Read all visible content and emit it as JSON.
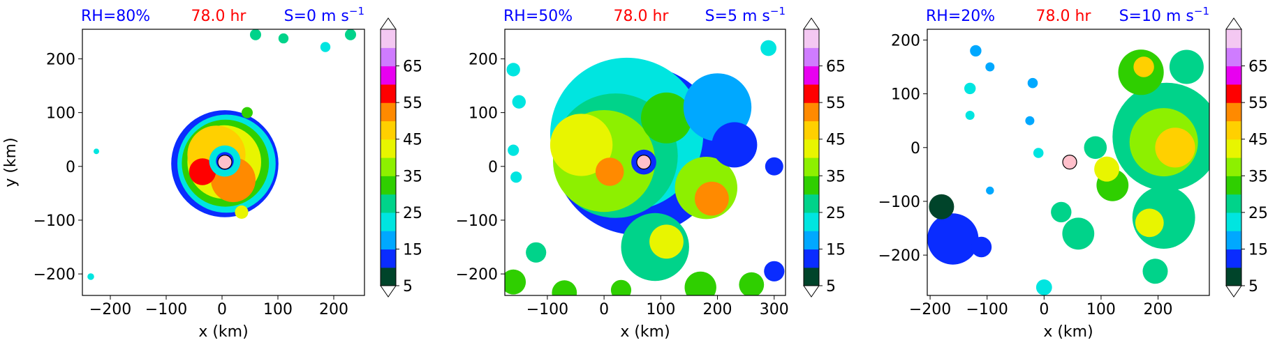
{
  "figure": {
    "colorbar_ticks": [
      "5",
      "15",
      "25",
      "35",
      "45",
      "55",
      "65"
    ],
    "colorbar_colors": [
      "#00442a",
      "#0a2cff",
      "#00a8ff",
      "#00e5e0",
      "#00d38a",
      "#2fcf00",
      "#8df000",
      "#e8f500",
      "#ffd000",
      "#ff8a00",
      "#ff0000",
      "#e800f0",
      "#cf7cff",
      "#f4c8f2"
    ],
    "title_colors": {
      "left": "#0000ff",
      "center": "#ff0000",
      "right": "#0000ff"
    },
    "center_marker_color": "#ffc0cb",
    "shared_time": "78.0 hr"
  },
  "chart_data": [
    {
      "type": "heatmap",
      "title_left": "RH=80%",
      "title_center": "78.0 hr",
      "title_right": "S=0 m s",
      "title_right_sup": "−1",
      "xlabel": "x (km)",
      "ylabel": "y (km)",
      "xlim": [
        -250,
        255
      ],
      "ylim": [
        -240,
        255
      ],
      "xticks": [
        -200,
        -100,
        0,
        100,
        200
      ],
      "xtick_labels": [
        "−200",
        "−100",
        "0",
        "100",
        "200"
      ],
      "yticks": [
        -200,
        -100,
        0,
        100,
        200
      ],
      "ytick_labels": [
        "−200",
        "−100",
        "0",
        "100",
        "200"
      ],
      "center_marker": [
        5,
        8
      ],
      "colorbar_range": [
        5,
        70
      ],
      "blobs": [
        {
          "x": 5,
          "y": 5,
          "r": 96,
          "v": 12
        },
        {
          "x": 8,
          "y": 5,
          "r": 88,
          "v": 20
        },
        {
          "x": 6,
          "y": 6,
          "r": 78,
          "v": 30
        },
        {
          "x": 4,
          "y": 8,
          "r": 66,
          "v": 40
        },
        {
          "x": -10,
          "y": 22,
          "r": 52,
          "v": 44
        },
        {
          "x": 20,
          "y": -25,
          "r": 40,
          "v": 50
        },
        {
          "x": -35,
          "y": -10,
          "r": 24,
          "v": 52
        },
        {
          "x": 5,
          "y": 10,
          "r": 28,
          "v": 22
        },
        {
          "x": 5,
          "y": 10,
          "r": 16,
          "v": 12
        },
        {
          "x": 35,
          "y": -85,
          "r": 12,
          "v": 38
        },
        {
          "x": 45,
          "y": 100,
          "r": 10,
          "v": 30
        },
        {
          "x": 60,
          "y": 245,
          "r": 10,
          "v": 25
        },
        {
          "x": 110,
          "y": 238,
          "r": 9,
          "v": 25
        },
        {
          "x": 185,
          "y": 222,
          "r": 9,
          "v": 22
        },
        {
          "x": 230,
          "y": 245,
          "r": 10,
          "v": 25
        },
        {
          "x": -225,
          "y": 28,
          "r": 5,
          "v": 20
        },
        {
          "x": -235,
          "y": -205,
          "r": 6,
          "v": 20
        }
      ]
    },
    {
      "type": "heatmap",
      "title_left": "RH=50%",
      "title_center": "78.0 hr",
      "title_right": "S=5 m s",
      "title_right_sup": "−1",
      "xlabel": "x (km)",
      "ylabel": "",
      "xlim": [
        -175,
        320
      ],
      "ylim": [
        -240,
        255
      ],
      "xticks": [
        -100,
        0,
        100,
        200,
        300
      ],
      "xtick_labels": [
        "−100",
        "0",
        "100",
        "200",
        "300"
      ],
      "yticks": [
        -200,
        -100,
        0,
        100,
        200
      ],
      "ytick_labels": [
        "−200",
        "−100",
        "0",
        "100",
        "200"
      ],
      "center_marker": [
        70,
        8
      ],
      "colorbar_range": [
        5,
        70
      ],
      "blobs": [
        {
          "x": 60,
          "y": 30,
          "r": 150,
          "v": 12
        },
        {
          "x": 40,
          "y": 60,
          "r": 135,
          "v": 22
        },
        {
          "x": 20,
          "y": 20,
          "r": 110,
          "v": 28
        },
        {
          "x": 0,
          "y": 10,
          "r": 90,
          "v": 36
        },
        {
          "x": -40,
          "y": 40,
          "r": 55,
          "v": 42
        },
        {
          "x": 180,
          "y": -40,
          "r": 55,
          "v": 36
        },
        {
          "x": 190,
          "y": -60,
          "r": 30,
          "v": 48
        },
        {
          "x": 10,
          "y": -10,
          "r": 25,
          "v": 50
        },
        {
          "x": 110,
          "y": 90,
          "r": 45,
          "v": 30
        },
        {
          "x": 200,
          "y": 110,
          "r": 60,
          "v": 18
        },
        {
          "x": 230,
          "y": 40,
          "r": 40,
          "v": 14
        },
        {
          "x": 70,
          "y": 8,
          "r": 22,
          "v": 14
        },
        {
          "x": 90,
          "y": -150,
          "r": 60,
          "v": 24
        },
        {
          "x": 110,
          "y": -140,
          "r": 30,
          "v": 38
        },
        {
          "x": -120,
          "y": -160,
          "r": 18,
          "v": 28
        },
        {
          "x": -160,
          "y": -215,
          "r": 22,
          "v": 32
        },
        {
          "x": -70,
          "y": -235,
          "r": 22,
          "v": 32
        },
        {
          "x": 30,
          "y": -230,
          "r": 18,
          "v": 30
        },
        {
          "x": 170,
          "y": -225,
          "r": 28,
          "v": 32
        },
        {
          "x": 260,
          "y": -220,
          "r": 22,
          "v": 30
        },
        {
          "x": 300,
          "y": -195,
          "r": 18,
          "v": 12
        },
        {
          "x": -160,
          "y": 180,
          "r": 12,
          "v": 20
        },
        {
          "x": -150,
          "y": 120,
          "r": 12,
          "v": 20
        },
        {
          "x": -160,
          "y": 30,
          "r": 10,
          "v": 20
        },
        {
          "x": -155,
          "y": -20,
          "r": 10,
          "v": 20
        },
        {
          "x": 290,
          "y": 220,
          "r": 14,
          "v": 20
        },
        {
          "x": 300,
          "y": 0,
          "r": 16,
          "v": 12
        }
      ]
    },
    {
      "type": "heatmap",
      "title_left": "RH=20%",
      "title_center": "78.0 hr",
      "title_right": "S=10 m s",
      "title_right_sup": "−1",
      "xlabel": "x (km)",
      "ylabel": "",
      "xlim": [
        -205,
        290
      ],
      "ylim": [
        -275,
        220
      ],
      "xticks": [
        -200,
        -100,
        0,
        100,
        200
      ],
      "xtick_labels": [
        "−200",
        "−100",
        "0",
        "100",
        "200"
      ],
      "yticks": [
        -200,
        -100,
        0,
        100,
        200
      ],
      "ytick_labels": [
        "−200",
        "−100",
        "0",
        "100",
        "200"
      ],
      "center_marker": [
        45,
        -27
      ],
      "colorbar_range": [
        5,
        70
      ],
      "blobs": [
        {
          "x": 215,
          "y": 20,
          "r": 95,
          "v": 26
        },
        {
          "x": 210,
          "y": 10,
          "r": 60,
          "v": 36
        },
        {
          "x": 230,
          "y": 0,
          "r": 35,
          "v": 46
        },
        {
          "x": 170,
          "y": 140,
          "r": 40,
          "v": 30
        },
        {
          "x": 175,
          "y": 150,
          "r": 18,
          "v": 46
        },
        {
          "x": 250,
          "y": 150,
          "r": 30,
          "v": 28
        },
        {
          "x": 210,
          "y": -130,
          "r": 55,
          "v": 24
        },
        {
          "x": 185,
          "y": -140,
          "r": 25,
          "v": 40
        },
        {
          "x": 195,
          "y": -230,
          "r": 22,
          "v": 26
        },
        {
          "x": 120,
          "y": -70,
          "r": 28,
          "v": 30
        },
        {
          "x": 110,
          "y": -40,
          "r": 22,
          "v": 40
        },
        {
          "x": 90,
          "y": 0,
          "r": 20,
          "v": 28
        },
        {
          "x": 60,
          "y": -160,
          "r": 28,
          "v": 28
        },
        {
          "x": 30,
          "y": -120,
          "r": 18,
          "v": 24
        },
        {
          "x": 0,
          "y": -260,
          "r": 14,
          "v": 22
        },
        {
          "x": -160,
          "y": -170,
          "r": 45,
          "v": 11
        },
        {
          "x": -180,
          "y": -110,
          "r": 22,
          "v": 8
        },
        {
          "x": -110,
          "y": -185,
          "r": 18,
          "v": 11
        },
        {
          "x": -120,
          "y": 180,
          "r": 10,
          "v": 18
        },
        {
          "x": -95,
          "y": 150,
          "r": 8,
          "v": 18
        },
        {
          "x": -130,
          "y": 110,
          "r": 10,
          "v": 20
        },
        {
          "x": -130,
          "y": 60,
          "r": 8,
          "v": 20
        },
        {
          "x": -20,
          "y": 120,
          "r": 9,
          "v": 18
        },
        {
          "x": -25,
          "y": 50,
          "r": 8,
          "v": 18
        },
        {
          "x": -10,
          "y": -10,
          "r": 9,
          "v": 20
        },
        {
          "x": -95,
          "y": -80,
          "r": 7,
          "v": 15
        }
      ]
    }
  ]
}
